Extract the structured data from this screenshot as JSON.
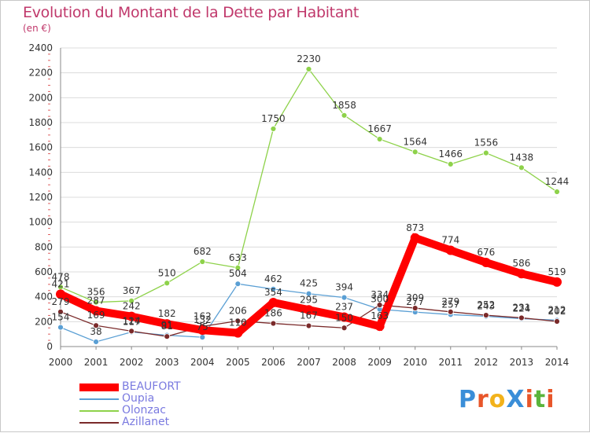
{
  "header": {
    "title": "Evolution du Montant de la Dette par Habitant",
    "subtitle": "(en €)"
  },
  "logo": {
    "text": "ProXiti",
    "letters": [
      "P",
      "r",
      "o",
      "X",
      "i",
      "t",
      "i"
    ],
    "colors": [
      "#3a8ed8",
      "#e8562a",
      "#f2b21b",
      "#3a8ed8",
      "#e8562a",
      "#5ab43c",
      "#e8562a"
    ]
  },
  "chart_data": {
    "type": "line",
    "title": "Evolution du Montant de la Dette par Habitant",
    "subtitle": "(en €)",
    "xlabel": "",
    "ylabel": "",
    "x": [
      "2000",
      "2001",
      "2002",
      "2003",
      "2004",
      "2005",
      "2006",
      "2007",
      "2008",
      "2009",
      "2010",
      "2011",
      "2012",
      "2013",
      "2014"
    ],
    "ylim": [
      0,
      2400
    ],
    "yticks": [
      "0",
      "200",
      "400",
      "600",
      "800",
      "1000",
      "1200",
      "1400",
      "1600",
      "1800",
      "2000",
      "2200",
      "2400"
    ],
    "grid": "horizontal",
    "legend_position": "bottom-left",
    "series": [
      {
        "name": "BEAUFORT",
        "color": "#ff0000",
        "values": [
          421,
          287,
          242,
          182,
          132,
          110,
          354,
          295,
          237,
          163,
          873,
          774,
          676,
          586,
          519
        ],
        "labels": [
          "421",
          "287",
          "242",
          "182",
          "132",
          "110",
          "354",
          "295",
          "237",
          "163",
          "873",
          "774",
          "676",
          "586",
          "519"
        ]
      },
      {
        "name": "Oupia",
        "color": "#5a9fd4",
        "values": [
          154,
          38,
          117,
          91,
          75,
          504,
          462,
          425,
          394,
          300,
          277,
          257,
          243,
          224,
          212
        ],
        "labels": [
          "154",
          "38",
          "117",
          "91",
          "75",
          "504",
          "462",
          "425",
          "394",
          "300",
          "277",
          "257",
          "243",
          "224",
          "212"
        ]
      },
      {
        "name": "Olonzac",
        "color": "#8ed24a",
        "values": [
          478,
          356,
          367,
          510,
          682,
          633,
          1750,
          2230,
          1858,
          1667,
          1564,
          1466,
          1556,
          1438,
          1244
        ],
        "labels": [
          "478",
          "356",
          "367",
          "510",
          "682",
          "633",
          "1750",
          "2230",
          "1858",
          "1667",
          "1564",
          "1466",
          "1556",
          "1438",
          "1244"
        ]
      },
      {
        "name": "Azillanet",
        "color": "#7a2a2a",
        "values": [
          279,
          169,
          124,
          81,
          162,
          206,
          186,
          167,
          150,
          334,
          309,
          279,
          252,
          231,
          202
        ],
        "labels": [
          "279",
          "169",
          "124",
          "81",
          "162",
          "206",
          "186",
          "167",
          "150",
          "334",
          "309",
          "279",
          "252",
          "231",
          "202"
        ]
      }
    ]
  }
}
